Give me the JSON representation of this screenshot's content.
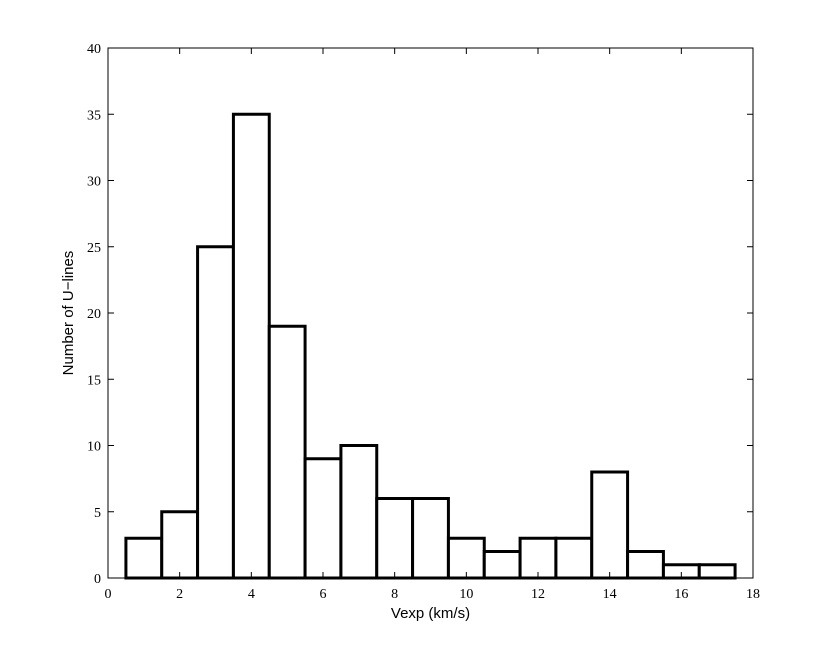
{
  "chart_data": {
    "type": "bar",
    "title": "",
    "xlabel": "Vexp (km/s)",
    "ylabel": "Number of U−lines",
    "xlim": [
      0,
      18
    ],
    "ylim": [
      0,
      40
    ],
    "xticks": [
      0,
      2,
      4,
      6,
      8,
      10,
      12,
      14,
      16,
      18
    ],
    "yticks": [
      0,
      5,
      10,
      15,
      20,
      25,
      30,
      35,
      40
    ],
    "bin_width": 1,
    "x": [
      1,
      2,
      3,
      4,
      5,
      6,
      7,
      8,
      9,
      10,
      11,
      12,
      13,
      14,
      15,
      16,
      17
    ],
    "values": [
      3,
      5,
      25,
      35,
      19,
      9,
      10,
      6,
      6,
      3,
      2,
      3,
      3,
      8,
      2,
      1,
      1
    ],
    "bar_fill": "#ffffff",
    "bar_edge": "#000000",
    "grid": false,
    "legend": false
  }
}
